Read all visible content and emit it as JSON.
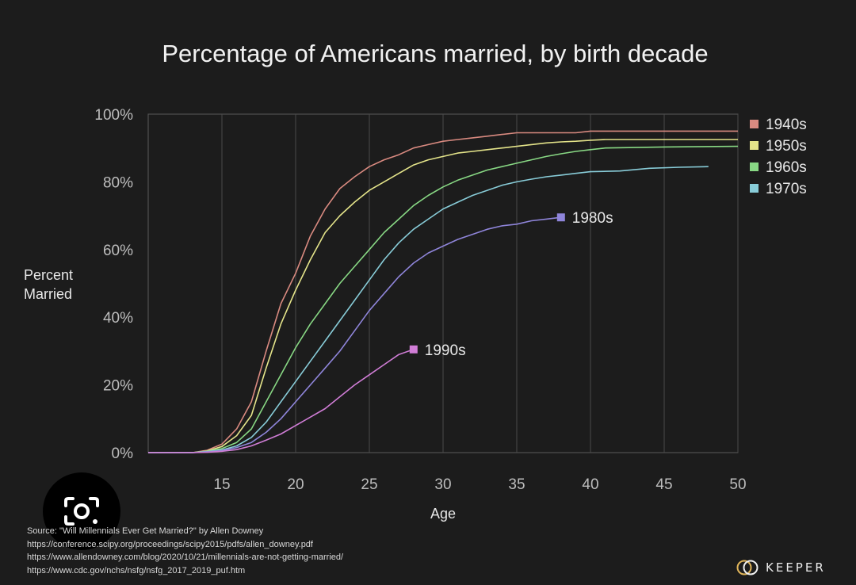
{
  "chart_data": {
    "type": "line",
    "title": "Percentage of Americans married, by birth decade",
    "xlabel": "Age",
    "ylabel": [
      "Percent",
      "Married"
    ],
    "xlim": [
      10,
      50
    ],
    "ylim": [
      0,
      100
    ],
    "x_ticks": [
      15,
      20,
      25,
      30,
      35,
      40,
      45,
      50
    ],
    "y_ticks": [
      0,
      20,
      40,
      60,
      80,
      100
    ],
    "y_tick_labels": [
      "0%",
      "20%",
      "40%",
      "60%",
      "80%",
      "100%"
    ],
    "grid": true,
    "series": [
      {
        "name": "1940s",
        "color": "#d98a80",
        "points": [
          [
            10,
            0
          ],
          [
            13,
            0
          ],
          [
            14,
            0.7
          ],
          [
            15,
            2.5
          ],
          [
            16,
            7
          ],
          [
            17,
            15
          ],
          [
            18,
            30
          ],
          [
            19,
            44
          ],
          [
            20,
            53
          ],
          [
            21,
            64
          ],
          [
            22,
            72
          ],
          [
            23,
            78
          ],
          [
            24,
            81.5
          ],
          [
            25,
            84.5
          ],
          [
            26,
            86.5
          ],
          [
            27,
            88
          ],
          [
            28,
            90
          ],
          [
            29,
            91
          ],
          [
            30,
            92
          ],
          [
            31,
            92.5
          ],
          [
            32,
            93
          ],
          [
            33,
            93.5
          ],
          [
            34,
            94
          ],
          [
            35,
            94.5
          ],
          [
            36,
            94.5
          ],
          [
            37,
            94.5
          ],
          [
            38,
            94.5
          ],
          [
            39,
            94.5
          ],
          [
            40,
            95
          ],
          [
            45,
            95
          ],
          [
            50,
            95
          ]
        ]
      },
      {
        "name": "1950s",
        "color": "#e4e48a",
        "points": [
          [
            10,
            0
          ],
          [
            13,
            0
          ],
          [
            14,
            0.5
          ],
          [
            15,
            1.8
          ],
          [
            16,
            5
          ],
          [
            17,
            11
          ],
          [
            18,
            25
          ],
          [
            19,
            38
          ],
          [
            20,
            48
          ],
          [
            21,
            57
          ],
          [
            22,
            65
          ],
          [
            23,
            70
          ],
          [
            24,
            74
          ],
          [
            25,
            77.5
          ],
          [
            26,
            80
          ],
          [
            27,
            82.5
          ],
          [
            28,
            85
          ],
          [
            29,
            86.5
          ],
          [
            30,
            87.5
          ],
          [
            31,
            88.5
          ],
          [
            32,
            89
          ],
          [
            33,
            89.5
          ],
          [
            34,
            90
          ],
          [
            35,
            90.5
          ],
          [
            36,
            91
          ],
          [
            37,
            91.5
          ],
          [
            38,
            91.8
          ],
          [
            39,
            92
          ],
          [
            40,
            92.3
          ],
          [
            41,
            92.5
          ],
          [
            45,
            92.5
          ],
          [
            50,
            92.5
          ]
        ]
      },
      {
        "name": "1960s",
        "color": "#88d884",
        "points": [
          [
            10,
            0
          ],
          [
            13,
            0
          ],
          [
            14,
            0.4
          ],
          [
            15,
            1.2
          ],
          [
            16,
            3
          ],
          [
            17,
            7
          ],
          [
            18,
            15
          ],
          [
            19,
            23
          ],
          [
            20,
            31
          ],
          [
            21,
            38
          ],
          [
            22,
            44
          ],
          [
            23,
            50
          ],
          [
            24,
            55
          ],
          [
            25,
            60
          ],
          [
            26,
            65
          ],
          [
            27,
            69
          ],
          [
            28,
            73
          ],
          [
            29,
            76
          ],
          [
            30,
            78.5
          ],
          [
            31,
            80.5
          ],
          [
            32,
            82
          ],
          [
            33,
            83.5
          ],
          [
            34,
            84.5
          ],
          [
            35,
            85.5
          ],
          [
            36,
            86.5
          ],
          [
            37,
            87.5
          ],
          [
            38,
            88.3
          ],
          [
            39,
            89
          ],
          [
            40,
            89.5
          ],
          [
            41,
            90
          ],
          [
            45,
            90.3
          ],
          [
            50,
            90.5
          ]
        ]
      },
      {
        "name": "1970s",
        "color": "#88ccd8",
        "points": [
          [
            10,
            0
          ],
          [
            13,
            0
          ],
          [
            14,
            0.3
          ],
          [
            15,
            0.8
          ],
          [
            16,
            2
          ],
          [
            17,
            4.5
          ],
          [
            18,
            9
          ],
          [
            19,
            15
          ],
          [
            20,
            21
          ],
          [
            21,
            27
          ],
          [
            22,
            33
          ],
          [
            23,
            39
          ],
          [
            24,
            45
          ],
          [
            25,
            51
          ],
          [
            26,
            57
          ],
          [
            27,
            62
          ],
          [
            28,
            66
          ],
          [
            29,
            69
          ],
          [
            30,
            72
          ],
          [
            31,
            74
          ],
          [
            32,
            76
          ],
          [
            33,
            77.5
          ],
          [
            34,
            79
          ],
          [
            35,
            80
          ],
          [
            36,
            80.8
          ],
          [
            37,
            81.5
          ],
          [
            38,
            82
          ],
          [
            39,
            82.5
          ],
          [
            40,
            83
          ],
          [
            42,
            83.2
          ],
          [
            44,
            84
          ],
          [
            46,
            84.3
          ],
          [
            48,
            84.5
          ]
        ]
      },
      {
        "name": "1980s",
        "color": "#8f85da",
        "points": [
          [
            10,
            0
          ],
          [
            13,
            0
          ],
          [
            14,
            0.2
          ],
          [
            15,
            0.6
          ],
          [
            16,
            1.5
          ],
          [
            17,
            3
          ],
          [
            18,
            6
          ],
          [
            19,
            10
          ],
          [
            20,
            15
          ],
          [
            21,
            20
          ],
          [
            22,
            25
          ],
          [
            23,
            30
          ],
          [
            24,
            36
          ],
          [
            25,
            42
          ],
          [
            26,
            47
          ],
          [
            27,
            52
          ],
          [
            28,
            56
          ],
          [
            29,
            59
          ],
          [
            30,
            61
          ],
          [
            31,
            63
          ],
          [
            32,
            64.5
          ],
          [
            33,
            66
          ],
          [
            34,
            67
          ],
          [
            35,
            67.5
          ],
          [
            36,
            68.5
          ],
          [
            37,
            69
          ],
          [
            38,
            69.5
          ]
        ]
      },
      {
        "name": "1990s",
        "color": "#d07dd6",
        "points": [
          [
            10,
            0
          ],
          [
            13,
            0
          ],
          [
            14,
            0.1
          ],
          [
            15,
            0.4
          ],
          [
            16,
            0.9
          ],
          [
            17,
            2
          ],
          [
            18,
            3.7
          ],
          [
            19,
            5.5
          ],
          [
            20,
            8
          ],
          [
            21,
            10.5
          ],
          [
            22,
            13
          ],
          [
            23,
            16.5
          ],
          [
            24,
            20
          ],
          [
            25,
            23
          ],
          [
            26,
            26
          ],
          [
            27,
            29
          ],
          [
            28,
            30.5
          ]
        ]
      }
    ],
    "legend": [
      "1940s",
      "1950s",
      "1960s",
      "1970s"
    ],
    "legend_position": "top-right",
    "end_labels": [
      "1980s",
      "1990s"
    ]
  },
  "footer": {
    "source_line": "Source: \"Will Millennials Ever Get Married?\" by Allen Downey",
    "urls": [
      "https://conference.scipy.org/proceedings/scipy2015/pdfs/allen_downey.pdf",
      "https://www.allendowney.com/blog/2020/10/21/millennials-are-not-getting-married/",
      "https://www.cdc.gov/nchs/nsfg/nsfg_2017_2019_puf.htm"
    ]
  },
  "brand": {
    "name": "KEEPER"
  },
  "overlay": {
    "icon": "camera-lens-icon"
  }
}
